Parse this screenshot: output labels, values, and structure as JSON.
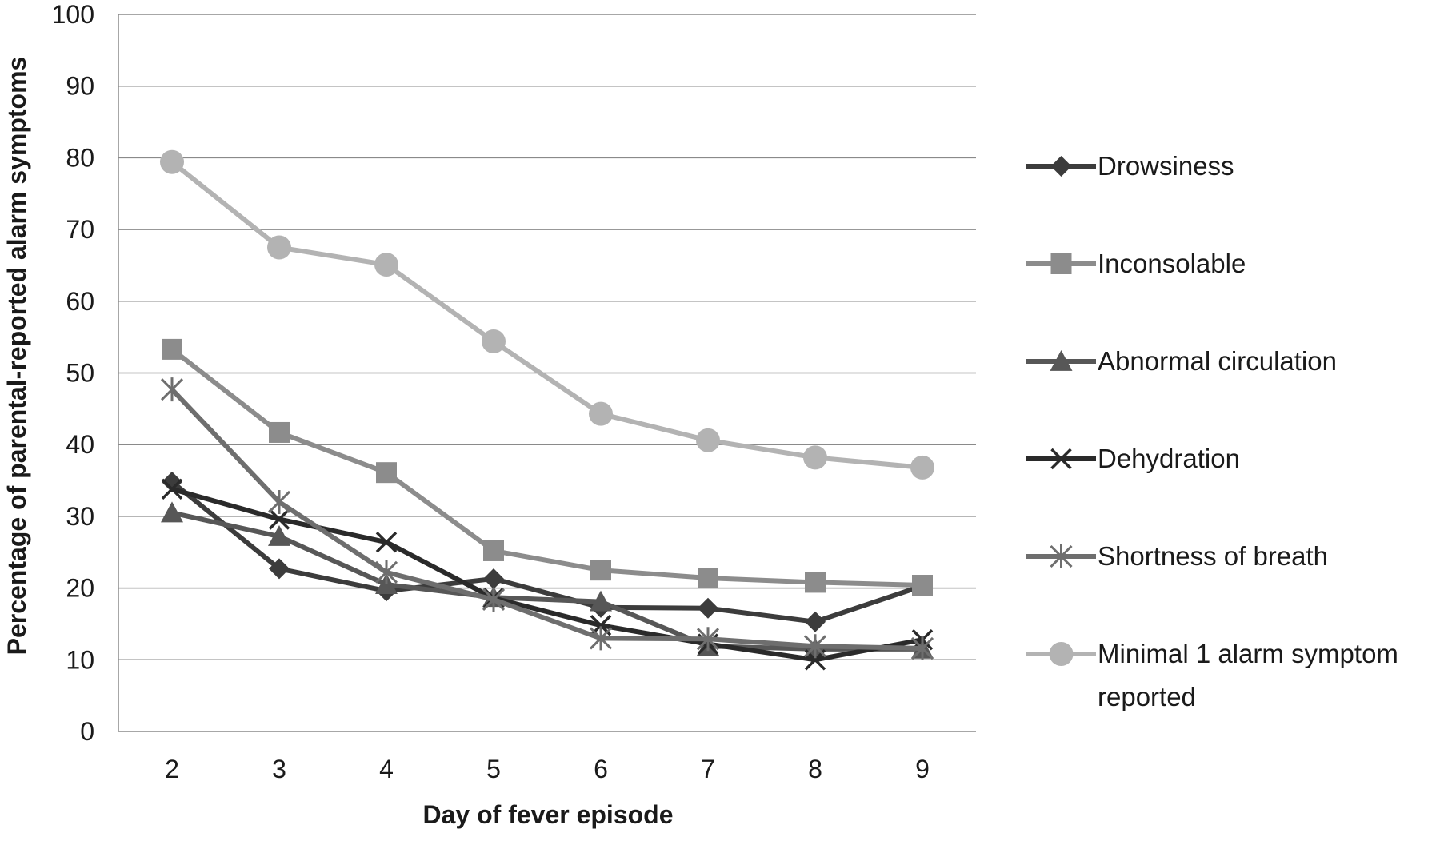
{
  "chart_data": {
    "type": "line",
    "xlabel": "Day of fever episode",
    "ylabel": "Percentage of parental-reported alarm symptoms",
    "x": [
      2,
      3,
      4,
      5,
      6,
      7,
      8,
      9
    ],
    "x_tick_labels": [
      "2",
      "3",
      "4",
      "5",
      "6",
      "7",
      "8",
      "9"
    ],
    "y_tick_labels": [
      "0",
      "10",
      "20",
      "30",
      "40",
      "50",
      "60",
      "70",
      "80",
      "90",
      "100"
    ],
    "ylim": [
      0,
      100
    ],
    "grid": "horizontal major gridlines",
    "legend_position": "right",
    "series": [
      {
        "name": "Drowsiness",
        "marker": "diamond",
        "color": "#3c3c3c",
        "values": [
          34.8,
          22.7,
          19.6,
          21.3,
          17.3,
          17.2,
          15.3,
          20.3
        ]
      },
      {
        "name": "Inconsolable",
        "marker": "square",
        "color": "#8c8c8c",
        "values": [
          53.3,
          41.7,
          36.1,
          25.2,
          22.5,
          21.4,
          20.8,
          20.4
        ]
      },
      {
        "name": "Abnormal circulation",
        "marker": "triangle",
        "color": "#575757",
        "values": [
          30.5,
          27.2,
          20.5,
          18.7,
          18.1,
          11.9,
          11.5,
          11.5
        ]
      },
      {
        "name": "Dehydration",
        "marker": "x",
        "color": "#2a2a2a",
        "values": [
          33.8,
          29.6,
          26.4,
          18.6,
          14.8,
          12.2,
          10.0,
          12.8
        ]
      },
      {
        "name": "Shortness of breath",
        "marker": "star",
        "color": "#6e6e6e",
        "values": [
          47.7,
          32.0,
          22.2,
          18.4,
          13.0,
          12.9,
          11.9,
          11.6
        ]
      },
      {
        "name": "Minimal 1 alarm symptom reported",
        "marker": "circle",
        "color": "#b3b3b3",
        "legend_lines": [
          "Minimal 1 alarm symptom",
          "reported"
        ],
        "values": [
          79.4,
          67.5,
          65.1,
          54.4,
          44.3,
          40.6,
          38.2,
          36.8
        ]
      }
    ]
  }
}
